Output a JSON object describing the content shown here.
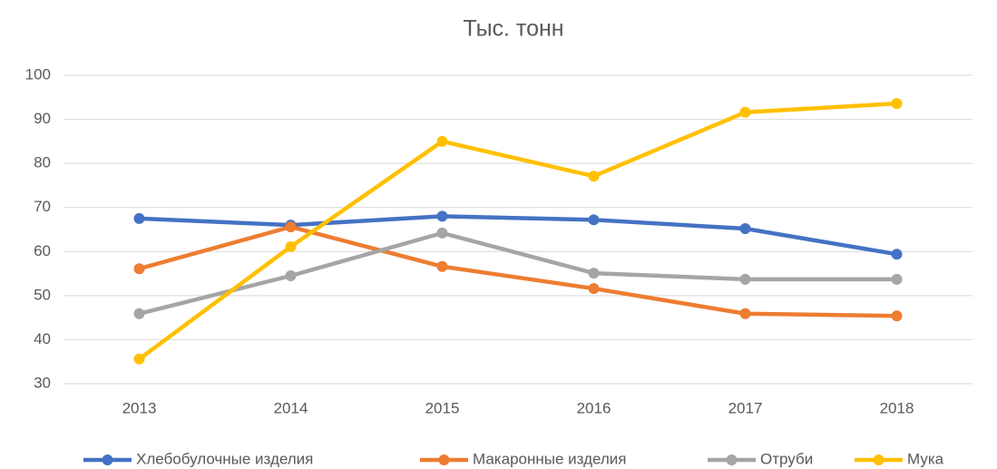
{
  "chart_data": {
    "type": "line",
    "title": "Тыс. тонн",
    "categories": [
      "2013",
      "2014",
      "2015",
      "2016",
      "2017",
      "2018"
    ],
    "series": [
      {
        "name": "Хлебобулочные изделия",
        "color": "#4472c4",
        "values": [
          67.5,
          66,
          68,
          67.2,
          65.2,
          59.4
        ]
      },
      {
        "name": "Макаронные изделия",
        "color": "#ed7d31",
        "values": [
          56.1,
          65.6,
          56.6,
          51.6,
          45.9,
          45.4
        ]
      },
      {
        "name": "Отруби",
        "color": "#a5a5a5",
        "values": [
          45.9,
          54.5,
          64.2,
          55.1,
          53.7,
          53.7
        ]
      },
      {
        "name": "Мука",
        "color": "#ffc000",
        "values": [
          35.6,
          61.1,
          85,
          77.1,
          91.6,
          93.6
        ]
      }
    ],
    "ylim": [
      30,
      100
    ],
    "yticks": [
      30,
      40,
      50,
      60,
      70,
      80,
      90,
      100
    ],
    "grid": true,
    "legend": "bottom"
  }
}
